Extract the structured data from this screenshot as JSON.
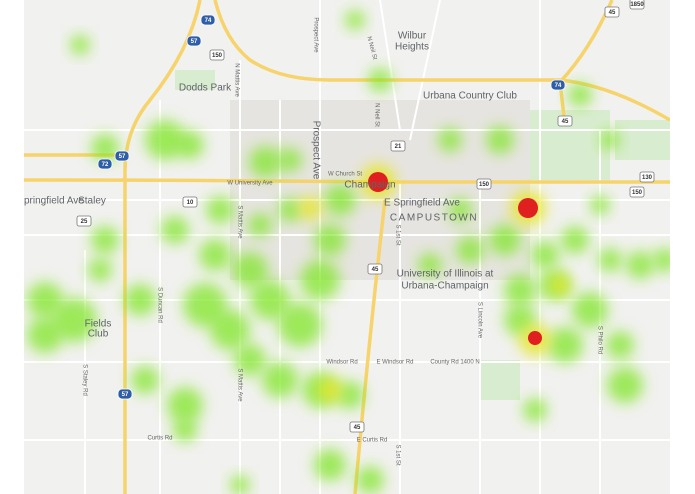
{
  "places": {
    "dodds_park": "Dodds Park",
    "wilbur_heights": [
      "Wilbur",
      "Heights"
    ],
    "urbana_country_club": "Urbana Country Club",
    "staley": "Staley",
    "fields_club": [
      "Fields",
      "Club"
    ],
    "campustown": "CAMPUSTOWN",
    "university": [
      "University of Illinois at",
      "Urbana-Champaign"
    ],
    "champaign": "Champaign"
  },
  "roads": {
    "springfield_w": "pringfield Ave",
    "university_ave": "W University Ave",
    "church_st": "W Church St",
    "springfield_e": "E Springfield Ave",
    "windsor_rd": "Windsor Rd",
    "windsor_e": "E Windsor Rd",
    "county_1400": "County Rd 1400 N",
    "curtis_rd": "Curtis Rd",
    "curtis_e": "E Curtis Rd",
    "prospect_n": "Prospect Ave",
    "prospect_s": "Prospect Ave",
    "neil_st": "N Neil St",
    "n_mattis": "N Mattis Ave",
    "s_mattis": "S Mattis Ave",
    "s_duncan": "S Duncan Rd",
    "s_staley": "S Staley Rd",
    "first_st": "S 1st St",
    "first_st_s": "S 1st St",
    "lincoln": "S Lincoln Ave",
    "philo": "S Philo Rd",
    "n_neil_2": "N Neil St"
  },
  "shields": {
    "i74_top": "74",
    "i57_top": "57",
    "us150_top": "150",
    "us45_top": "45",
    "c1850": "1850",
    "i74_right": "74",
    "us45_right": "45",
    "i57_mid": "57",
    "i72": "72",
    "r21": "21",
    "us150_right": "150",
    "r130": "130",
    "r10": "10",
    "r25": "25",
    "us45_mid": "45",
    "us150_mid": "150",
    "i57_low": "57",
    "us45_low": "45"
  }
}
